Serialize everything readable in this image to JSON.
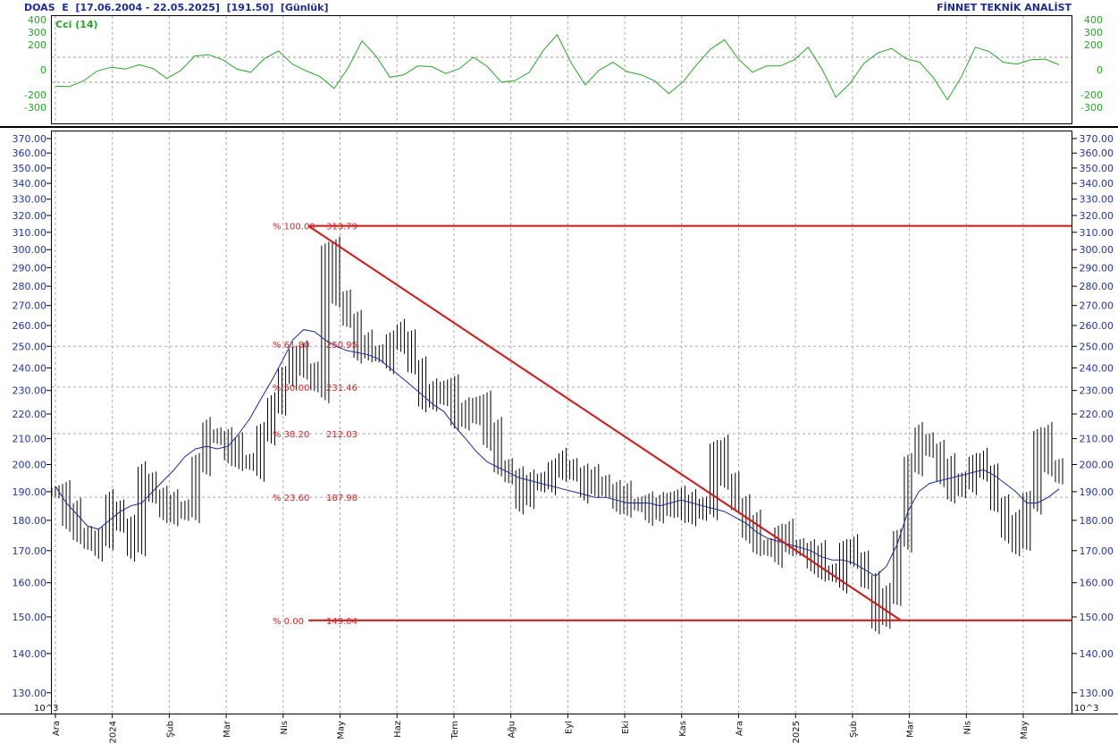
{
  "header": {
    "symbol": "DOAS",
    "series_code": "E",
    "date_range": "[17.06.2004 - 22.05.2025]",
    "last_price": "[191.50]",
    "period": "[Günlük]",
    "brand": "FİNNET TEKNİK ANALİST"
  },
  "colors": {
    "price_bars": "#000000",
    "moving_average": "#1a2aa0",
    "cci_line": "#22aa22",
    "fibonacci": "#dd1111",
    "axis_text": "#2233aa",
    "grid": "#999999"
  },
  "chart_data": [
    {
      "type": "line",
      "title": "Cci (14)",
      "ylim": [
        -400,
        400
      ],
      "yticks": [
        400,
        300,
        200,
        0,
        -200,
        -300
      ],
      "reference_lines": [
        100,
        -100
      ],
      "x": [
        "Ara",
        "",
        "2024",
        "",
        "Şub",
        "",
        "Mar",
        "",
        "Nis",
        "",
        "May",
        "",
        "Haz",
        "",
        "Tem",
        "",
        "Ağu",
        "",
        "Eyl",
        "",
        "Eki",
        "",
        "Kas",
        "",
        "Ara",
        "",
        "2025",
        "",
        "Şub",
        "",
        "Mar",
        "",
        "Nis",
        "",
        "May",
        "",
        ""
      ],
      "series": [
        {
          "values": [
            -130,
            -90,
            20,
            40,
            -70,
            110,
            80,
            -20,
            150,
            -10,
            -150,
            230,
            -60,
            30,
            -30,
            100,
            -100,
            -20,
            280,
            -120,
            60,
            -40,
            -190,
            40,
            240,
            -20,
            30,
            180,
            -220,
            50,
            170,
            60,
            -240,
            180,
            60,
            80,
            40
          ]
        }
      ]
    },
    {
      "type": "bar",
      "ohlc_style": true,
      "xlabel": "",
      "ylabel": "",
      "ylim": [
        125,
        375
      ],
      "log_scale": true,
      "yticks": [
        370,
        360,
        350,
        340,
        330,
        320,
        310,
        300,
        290,
        280,
        270,
        260,
        250,
        240,
        230,
        220,
        210,
        200,
        190,
        180,
        170,
        160,
        150,
        140,
        130
      ],
      "ytick_labels": [
        "370.00",
        "360.00",
        "350.00",
        "340.00",
        "330.00",
        "320.00",
        "310.00",
        "300.00",
        "290.00",
        "280.00",
        "270.00",
        "260.00",
        "250.00",
        "240.00",
        "230.00",
        "220.00",
        "210.00",
        "200.00",
        "190.00",
        "180.00",
        "170.00",
        "160.00",
        "150.00",
        "140.00",
        "130.00"
      ],
      "months": [
        "Ara",
        "2024",
        "Şub",
        "Mar",
        "Nis",
        "May",
        "Haz",
        "Tem",
        "Ağu",
        "Eyl",
        "Eki",
        "Kas",
        "Ara",
        "2025",
        "Şub",
        "Mar",
        "Nis",
        "May"
      ],
      "closes": [
        190,
        182,
        176,
        172,
        174,
        185,
        178,
        172,
        195,
        188,
        185,
        182,
        185,
        200,
        212,
        210,
        206,
        202,
        200,
        212,
        222,
        238,
        245,
        240,
        232,
        298,
        275,
        262,
        250,
        248,
        245,
        252,
        255,
        240,
        228,
        226,
        232,
        220,
        218,
        225,
        212,
        200,
        195,
        188,
        192,
        195,
        198,
        200,
        196,
        192,
        194,
        190,
        188,
        185,
        186,
        184,
        183,
        188,
        185,
        182,
        186,
        205,
        195,
        185,
        178,
        172,
        170,
        175,
        172,
        170,
        168,
        164,
        162,
        170,
        168,
        160,
        150,
        155,
        175,
        200,
        210,
        205,
        198,
        190,
        195,
        200,
        198,
        185,
        178,
        172,
        188,
        210,
        200,
        195
      ],
      "moving_average": [
        192,
        186,
        182,
        178,
        177,
        180,
        183,
        185,
        186,
        190,
        194,
        198,
        203,
        206,
        207,
        206,
        207,
        212,
        218,
        226,
        234,
        243,
        253,
        258,
        257,
        253,
        250,
        248,
        247,
        246,
        244,
        240,
        236,
        232,
        228,
        224,
        221,
        215,
        210,
        205,
        201,
        199,
        197,
        195,
        194,
        193,
        192,
        191,
        190,
        189,
        188,
        188,
        187,
        186,
        186,
        186,
        185,
        186,
        187,
        186,
        185,
        184,
        183,
        181,
        179,
        176,
        174,
        173,
        172,
        171,
        170,
        168,
        167,
        167,
        166,
        164,
        162,
        165,
        172,
        183,
        190,
        193,
        194,
        195,
        196,
        197,
        198,
        196,
        193,
        190,
        186,
        186,
        188,
        191
      ],
      "fibonacci": [
        {
          "label": "% 100.00",
          "value_label": "313.79",
          "value": 313.79
        },
        {
          "label": "% 61.80",
          "value_label": "250.95",
          "value": 250.95
        },
        {
          "label": "% 50.00",
          "value_label": "231.46",
          "value": 231.46
        },
        {
          "label": "% 38.20",
          "value_label": "212.03",
          "value": 212.03
        },
        {
          "label": "% 23.60",
          "value_label": "187.98",
          "value": 187.98
        },
        {
          "label": "% 0.00",
          "value_label": "149.04",
          "value": 149.04
        }
      ],
      "trendline": {
        "from": 313.79,
        "to": 149.04
      },
      "scale_note": "10^3"
    }
  ]
}
